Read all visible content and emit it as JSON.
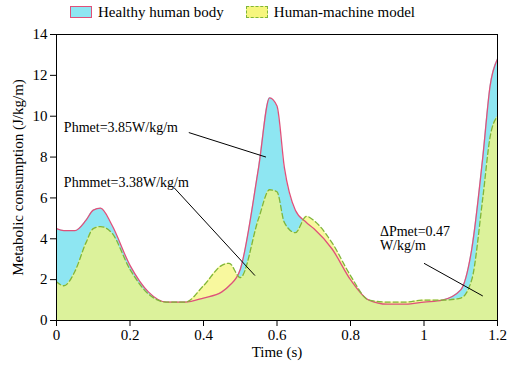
{
  "chart_data": {
    "type": "area",
    "x_label": "Time (s)",
    "y_label": "Metabolic consumption (J/kg/m)",
    "xlim": [
      0,
      1.2
    ],
    "xticks": [
      0,
      0.2,
      0.4,
      0.6,
      0.8,
      1,
      1.2
    ],
    "ylim": [
      0,
      14
    ],
    "yticks": [
      0,
      2,
      4,
      6,
      8,
      10,
      12,
      14
    ],
    "legend": "top",
    "x": [
      0,
      0.02,
      0.05,
      0.08,
      0.1,
      0.12,
      0.15,
      0.2,
      0.25,
      0.3,
      0.35,
      0.4,
      0.45,
      0.47,
      0.5,
      0.55,
      0.58,
      0.6,
      0.62,
      0.65,
      0.68,
      0.7,
      0.75,
      0.8,
      0.85,
      0.9,
      0.95,
      1.0,
      1.05,
      1.1,
      1.13,
      1.16,
      1.18,
      1.2
    ],
    "series": [
      {
        "name": "Healthy human body",
        "color": "#8ee6f2",
        "line_style": "solid",
        "values": [
          4.5,
          4.4,
          4.4,
          4.9,
          5.4,
          5.5,
          4.7,
          2.7,
          1.4,
          0.9,
          0.9,
          1.1,
          1.4,
          1.7,
          2.5,
          7.5,
          10.9,
          10.5,
          7.5,
          5.4,
          4.8,
          4.5,
          3.5,
          2.0,
          1.0,
          0.8,
          0.8,
          0.9,
          1.0,
          1.5,
          3.5,
          8.0,
          11.5,
          12.8
        ]
      },
      {
        "name": "Human-machine model",
        "color": "#f6f67e",
        "line_style": "dashed",
        "values": [
          1.9,
          1.7,
          2.4,
          3.8,
          4.5,
          4.6,
          4.3,
          2.5,
          1.3,
          0.9,
          0.9,
          1.7,
          2.7,
          2.8,
          2.1,
          5.0,
          6.4,
          6.3,
          4.8,
          4.3,
          5.1,
          4.9,
          3.8,
          2.2,
          1.0,
          0.9,
          0.9,
          1.0,
          1.0,
          1.1,
          2.0,
          6.0,
          9.0,
          10.0
        ]
      }
    ],
    "annotations": [
      "Phmet=3.85W/kg/m",
      "Phmmet=3.38W/kg/m",
      "ΔPmet=0.47\nW/kg/m"
    ]
  }
}
